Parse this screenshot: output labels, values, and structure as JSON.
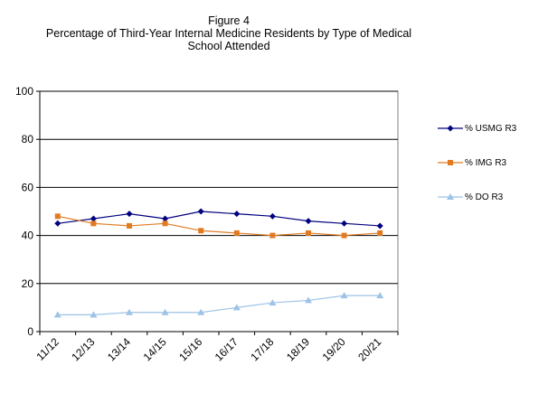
{
  "figure_label": "Figure 4",
  "title_line1": "Percentage of Third-Year Internal Medicine Residents by Type of Medical",
  "title_line2": "School Attended",
  "chart_data": {
    "type": "line",
    "title": "Percentage of Third-Year Internal Medicine Residents by Type of Medical School Attended",
    "x": [
      "11/12",
      "12/13",
      "13/14",
      "14/15",
      "15/16",
      "16/17",
      "17/18",
      "18/19",
      "19/20",
      "20/21"
    ],
    "ylim": [
      0,
      100
    ],
    "yticks": [
      0,
      20,
      40,
      60,
      80,
      100
    ],
    "grid": true,
    "legend_position": "right",
    "series": [
      {
        "name": "% USMG R3",
        "color": "#000080",
        "marker": "diamond",
        "values": [
          45,
          47,
          49,
          47,
          50,
          49,
          48,
          46,
          45,
          44
        ]
      },
      {
        "name": "% IMG R3",
        "color": "#e07b22",
        "marker": "square",
        "values": [
          48,
          45,
          44,
          45,
          42,
          41,
          40,
          41,
          40,
          41
        ]
      },
      {
        "name": "% DO R3",
        "color": "#9dc3e6",
        "marker": "triangle",
        "values": [
          7,
          7,
          8,
          8,
          8,
          10,
          12,
          13,
          15,
          15
        ]
      }
    ]
  }
}
